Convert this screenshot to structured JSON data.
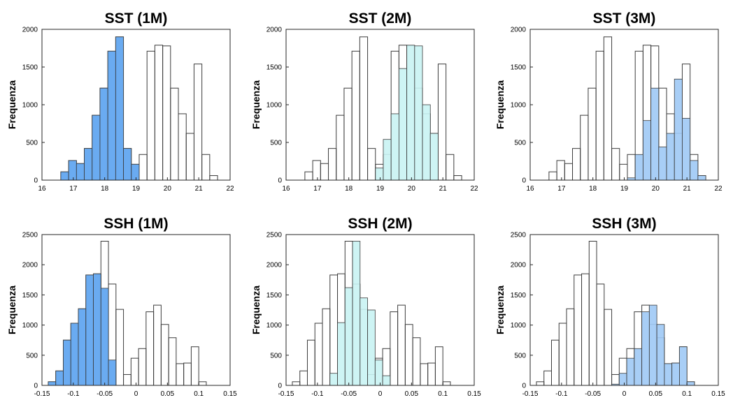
{
  "colors": {
    "one_month": "#5aa2ef",
    "two_month": "#c9f3f3",
    "three_month": "#9fc9f5",
    "outline": "#3c3c3c",
    "empty": "#ffffff"
  },
  "chart_data": [
    {
      "type": "bar",
      "title": "SST (1M)",
      "ylabel": "Frequenza",
      "xlabel": "",
      "xlim": [
        16,
        22
      ],
      "ylim": [
        0,
        2000
      ],
      "xticks": [
        "16",
        "17",
        "18",
        "19",
        "20",
        "21",
        "22"
      ],
      "yticks": [
        "0",
        "500",
        "1000",
        "1500",
        "2000"
      ],
      "bin_edges": [
        16.6,
        16.85,
        17.1,
        17.35,
        17.6,
        17.85,
        18.1,
        18.35,
        18.6,
        18.85,
        19.1,
        19.35,
        19.6,
        19.85,
        20.1,
        20.35,
        20.6,
        20.85,
        21.1,
        21.35,
        21.6
      ],
      "series": [
        {
          "values": [
            110,
            260,
            220,
            420,
            860,
            1220,
            1710,
            1900,
            420,
            210,
            340,
            1710,
            1790,
            1780,
            1220,
            880,
            620,
            1540,
            340,
            60
          ]
        },
        {
          "highlight": true,
          "values": [
            110,
            260,
            220,
            420,
            860,
            1220,
            1710,
            1900,
            420,
            210,
            0,
            0,
            0,
            0,
            0,
            0,
            0,
            0,
            0,
            0
          ]
        }
      ]
    },
    {
      "type": "bar",
      "title": "SST (2M)",
      "ylabel": "Frequenza",
      "xlabel": "",
      "xlim": [
        16,
        22
      ],
      "ylim": [
        0,
        2000
      ],
      "xticks": [
        "16",
        "17",
        "18",
        "19",
        "20",
        "21",
        "22"
      ],
      "yticks": [
        "0",
        "500",
        "1000",
        "1500",
        "2000"
      ],
      "bin_edges": [
        16.6,
        16.85,
        17.1,
        17.35,
        17.6,
        17.85,
        18.1,
        18.35,
        18.6,
        18.85,
        19.1,
        19.35,
        19.6,
        19.85,
        20.1,
        20.35,
        20.6,
        20.85,
        21.1,
        21.35,
        21.6
      ],
      "series": [
        {
          "values": [
            110,
            260,
            220,
            420,
            860,
            1220,
            1710,
            1900,
            420,
            210,
            340,
            1710,
            1790,
            1780,
            1220,
            880,
            620,
            1540,
            340,
            60
          ]
        },
        {
          "highlight": true,
          "values": [
            0,
            0,
            0,
            0,
            0,
            0,
            0,
            0,
            0,
            160,
            540,
            880,
            1480,
            1790,
            1780,
            1000,
            620,
            0,
            0,
            0
          ]
        }
      ]
    },
    {
      "type": "bar",
      "title": "SST (3M)",
      "ylabel": "Frequenza",
      "xlabel": "",
      "xlim": [
        16,
        22
      ],
      "ylim": [
        0,
        2000
      ],
      "xticks": [
        "16",
        "17",
        "18",
        "19",
        "20",
        "21",
        "22"
      ],
      "yticks": [
        "0",
        "500",
        "1000",
        "1500",
        "2000"
      ],
      "bin_edges": [
        16.6,
        16.85,
        17.1,
        17.35,
        17.6,
        17.85,
        18.1,
        18.35,
        18.6,
        18.85,
        19.1,
        19.35,
        19.6,
        19.85,
        20.1,
        20.35,
        20.6,
        20.85,
        21.1,
        21.35,
        21.6
      ],
      "series": [
        {
          "values": [
            110,
            260,
            220,
            420,
            860,
            1220,
            1710,
            1900,
            420,
            210,
            340,
            1710,
            1790,
            1780,
            1220,
            880,
            620,
            1540,
            340,
            60
          ]
        },
        {
          "highlight": true,
          "values": [
            0,
            0,
            0,
            0,
            0,
            0,
            0,
            0,
            0,
            0,
            30,
            340,
            790,
            1220,
            440,
            620,
            1340,
            820,
            260,
            60
          ]
        }
      ]
    },
    {
      "type": "bar",
      "title": "SSH (1M)",
      "ylabel": "Frequenza",
      "xlabel": "",
      "xlim": [
        -0.15,
        0.15
      ],
      "ylim": [
        0,
        2500
      ],
      "xticks": [
        "-0.15",
        "-0.1",
        "-0.05",
        "0",
        "0.05",
        "0.1",
        "0.15"
      ],
      "yticks": [
        "0",
        "500",
        "1000",
        "1500",
        "2000",
        "2500"
      ],
      "bin_edges": [
        -0.14,
        -0.128,
        -0.116,
        -0.104,
        -0.092,
        -0.08,
        -0.068,
        -0.056,
        -0.044,
        -0.032,
        -0.02,
        -0.008,
        0.004,
        0.016,
        0.028,
        0.04,
        0.052,
        0.064,
        0.076,
        0.088,
        0.1,
        0.112,
        0.124
      ],
      "series": [
        {
          "values": [
            60,
            240,
            750,
            1030,
            1270,
            1830,
            1850,
            2390,
            1680,
            1260,
            180,
            450,
            610,
            1220,
            1330,
            1010,
            790,
            360,
            370,
            640,
            60,
            0
          ]
        },
        {
          "highlight": true,
          "values": [
            60,
            240,
            750,
            1030,
            1270,
            1830,
            1850,
            1610,
            420,
            0,
            0,
            0,
            0,
            0,
            0,
            0,
            0,
            0,
            0,
            0,
            0,
            0
          ]
        }
      ]
    },
    {
      "type": "bar",
      "title": "SSH (2M)",
      "ylabel": "Frequenza",
      "xlabel": "",
      "xlim": [
        -0.15,
        0.15
      ],
      "ylim": [
        0,
        2500
      ],
      "xticks": [
        "-0.15",
        "-0.1",
        "-0.05",
        "0",
        "0.05",
        "0.1",
        "0.15"
      ],
      "yticks": [
        "0",
        "500",
        "1000",
        "1500",
        "2000",
        "2500"
      ],
      "bin_edges": [
        -0.14,
        -0.128,
        -0.116,
        -0.104,
        -0.092,
        -0.08,
        -0.068,
        -0.056,
        -0.044,
        -0.032,
        -0.02,
        -0.008,
        0.004,
        0.016,
        0.028,
        0.04,
        0.052,
        0.064,
        0.076,
        0.088,
        0.1,
        0.112,
        0.124
      ],
      "series": [
        {
          "values": [
            60,
            240,
            750,
            1030,
            1270,
            1830,
            1850,
            2390,
            1680,
            1260,
            180,
            450,
            610,
            1220,
            1330,
            1010,
            790,
            360,
            370,
            640,
            60,
            0
          ]
        },
        {
          "highlight": true,
          "values": [
            0,
            0,
            0,
            0,
            0,
            200,
            1040,
            1620,
            2390,
            1450,
            1250,
            420,
            160,
            0,
            0,
            0,
            0,
            0,
            0,
            0,
            0,
            0
          ]
        }
      ]
    },
    {
      "type": "bar",
      "title": "SSH (3M)",
      "ylabel": "Frequenza",
      "xlabel": "",
      "xlim": [
        -0.15,
        0.15
      ],
      "ylim": [
        0,
        2500
      ],
      "xticks": [
        "-0.15",
        "-0.1",
        "-0.05",
        "0",
        "0.05",
        "0.1",
        "0.15"
      ],
      "yticks": [
        "0",
        "500",
        "1000",
        "1500",
        "2000",
        "2500"
      ],
      "bin_edges": [
        -0.14,
        -0.128,
        -0.116,
        -0.104,
        -0.092,
        -0.08,
        -0.068,
        -0.056,
        -0.044,
        -0.032,
        -0.02,
        -0.008,
        0.004,
        0.016,
        0.028,
        0.04,
        0.052,
        0.064,
        0.076,
        0.088,
        0.1,
        0.112,
        0.124
      ],
      "series": [
        {
          "values": [
            60,
            240,
            750,
            1030,
            1270,
            1830,
            1850,
            2390,
            1680,
            1260,
            180,
            450,
            610,
            1220,
            1330,
            1010,
            790,
            360,
            370,
            640,
            60,
            0
          ]
        },
        {
          "highlight": true,
          "values": [
            0,
            0,
            0,
            0,
            0,
            0,
            0,
            0,
            0,
            0,
            20,
            200,
            450,
            610,
            1220,
            1330,
            1010,
            360,
            370,
            640,
            60,
            0
          ]
        }
      ]
    }
  ]
}
